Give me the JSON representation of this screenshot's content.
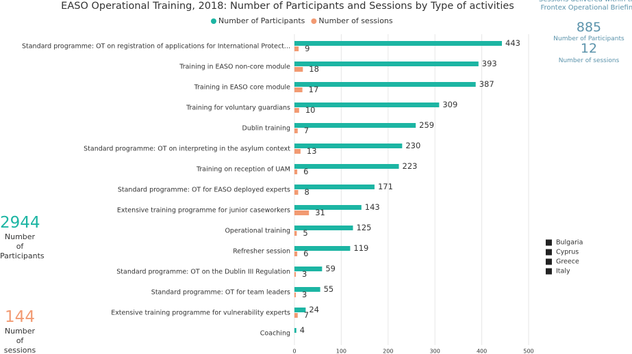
{
  "chart_data": {
    "type": "bar",
    "title": "EASO Operational Training, 2018: Number of Participants and Sessions by Type of activities",
    "categories": [
      "Standard programme: OT on registration of applications for International Protect...",
      "Training in EASO non-core module",
      "Training in EASO core module",
      "Training for voluntary guardians",
      "Dublin training",
      "Standard programme: OT on interpreting in the asylum context",
      "Training on reception of UAM",
      "Standard programme: OT for EASO deployed experts",
      "Extensive training programme for junior caseworkers",
      "Operational training",
      "Refresher session",
      "Standard programme: OT on the Dublin III Regulation",
      "Standard programme: OT for team leaders",
      "Extensive training programme for vulnerability experts",
      "Coaching"
    ],
    "series": [
      {
        "name": "Number of Participants",
        "color": "#1cb5a3",
        "values": [
          443,
          393,
          387,
          309,
          259,
          230,
          223,
          171,
          143,
          125,
          119,
          59,
          55,
          24,
          4
        ]
      },
      {
        "name": "Number of sessions",
        "color": "#f29a72",
        "values": [
          9,
          18,
          17,
          10,
          7,
          13,
          6,
          8,
          31,
          5,
          6,
          3,
          3,
          7,
          null
        ]
      }
    ],
    "xlim": [
      0,
      500
    ],
    "xticks": [
      0,
      100,
      200,
      300,
      400,
      500
    ],
    "grid": true,
    "legend": "top"
  },
  "summary": {
    "participants": {
      "value": 2944,
      "label": "Number of Participants"
    },
    "sessions": {
      "value": 144,
      "label": "Number of sessions"
    }
  },
  "frontex": {
    "title": "Sessions delivered within the Frontex Operational Briefing",
    "participants": {
      "value": 885,
      "label": "Number of Participants"
    },
    "sessions": {
      "value": 12,
      "label": "Number of sessions"
    }
  },
  "country_legend": [
    "Bulgaria",
    "Cyprus",
    "Greece",
    "Italy"
  ]
}
